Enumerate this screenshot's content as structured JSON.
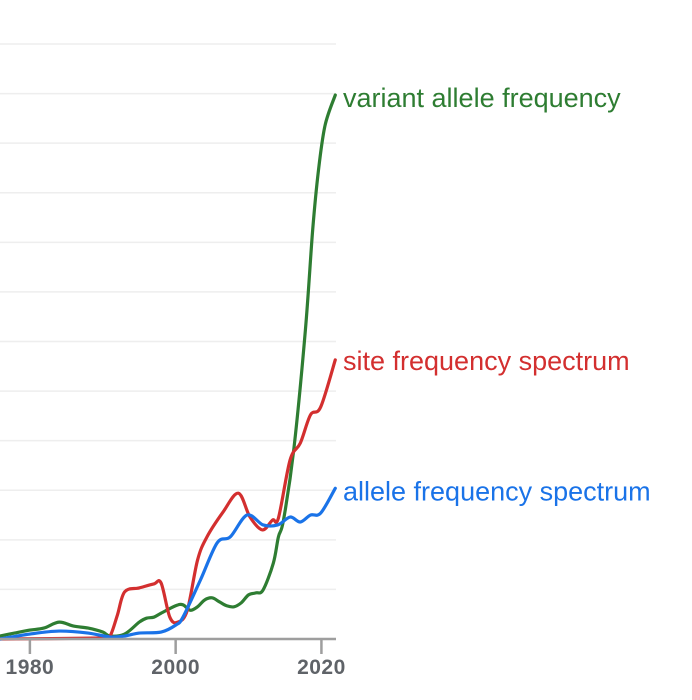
{
  "chart_data": {
    "type": "line",
    "title": "",
    "xlabel": "",
    "ylabel": "",
    "xlim": [
      1975.9,
      2022
    ],
    "ylim": [
      0,
      12
    ],
    "grid": true,
    "legend": "inline-right",
    "x_ticks": [
      "1980",
      "2000",
      "2020"
    ],
    "x_tick_values": [
      1980,
      2000,
      2020
    ],
    "series": [
      {
        "name": "variant allele frequency",
        "color": "#2e7d32",
        "x": [
          1975.9,
          1977.9,
          1980,
          1981.9,
          1984,
          1986,
          1988,
          1990,
          1991,
          1993,
          1995,
          1996,
          1997,
          1998,
          2000,
          2001,
          2002,
          2003,
          2004,
          2005,
          2006,
          2007,
          2008,
          2009,
          2010,
          2011,
          2012,
          2013.4,
          2014.1,
          2014.8,
          2016.2,
          2017.8,
          2018.8,
          2019.6,
          2020.5,
          2021.9
        ],
        "y": [
          0.06,
          0.12,
          0.18,
          0.22,
          0.34,
          0.26,
          0.22,
          0.14,
          0.06,
          0.1,
          0.34,
          0.42,
          0.44,
          0.52,
          0.67,
          0.69,
          0.58,
          0.65,
          0.79,
          0.83,
          0.75,
          0.67,
          0.65,
          0.73,
          0.89,
          0.93,
          0.99,
          1.53,
          2.06,
          2.4,
          3.81,
          6.23,
          8.25,
          9.46,
          10.36,
          10.97
        ]
      },
      {
        "name": "site frequency spectrum",
        "color": "#d32f2f",
        "x": [
          1975.9,
          1990,
          1991,
          1992,
          1993,
          1995,
          1997,
          1998,
          1999.2,
          2000.3,
          2001.6,
          2003,
          2004.3,
          2006.5,
          2008.6,
          2010.2,
          2011.9,
          2013.3,
          2014.1,
          2015.7,
          2017.1,
          2018.5,
          2019.9,
          2021.9
        ],
        "y": [
          0,
          0.02,
          0.06,
          0.48,
          0.95,
          1.03,
          1.11,
          1.13,
          0.44,
          0.34,
          0.58,
          1.59,
          2.06,
          2.56,
          2.94,
          2.46,
          2.2,
          2.4,
          2.44,
          3.61,
          3.95,
          4.52,
          4.68,
          5.63
        ]
      },
      {
        "name": "allele frequency spectrum",
        "color": "#1a73e8",
        "x": [
          1975.9,
          1980,
          1984,
          1988,
          1991,
          1993,
          1995,
          1998,
          2000,
          2001,
          2003.4,
          2005.7,
          2007.5,
          2009.8,
          2012,
          2014,
          2015.7,
          2017.1,
          2018.5,
          2019.9,
          2021.9
        ],
        "y": [
          0,
          0.1,
          0.16,
          0.12,
          0.04,
          0.06,
          0.12,
          0.14,
          0.28,
          0.44,
          1.19,
          1.94,
          2.06,
          2.5,
          2.3,
          2.3,
          2.46,
          2.36,
          2.5,
          2.54,
          3.04
        ]
      }
    ]
  }
}
